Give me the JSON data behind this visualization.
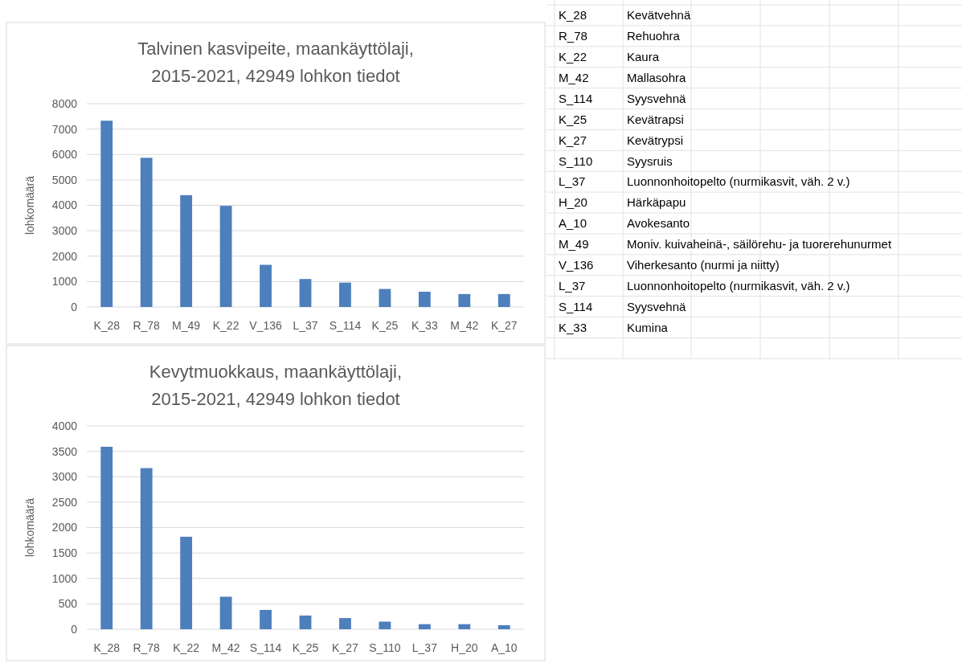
{
  "chart_data": [
    {
      "type": "bar",
      "title": "Talvinen kasvipeite, maankäyttölaji,\n2015-2021, 42949 lohkon tiedot",
      "ylabel": "lohkomäärä",
      "categories": [
        "K_28",
        "R_78",
        "M_49",
        "K_22",
        "V_136",
        "L_37",
        "S_114",
        "K_25",
        "K_33",
        "M_42",
        "K_27"
      ],
      "values": [
        7330,
        5870,
        4400,
        3980,
        1660,
        1100,
        960,
        710,
        600,
        510,
        510
      ],
      "color": "#4e7fbd",
      "ylim": [
        0,
        8000
      ],
      "yticks": [
        0,
        1000,
        2000,
        3000,
        4000,
        5000,
        6000,
        7000,
        8000
      ],
      "grid": "y"
    },
    {
      "type": "bar",
      "title": "Kevytmuokkaus, maankäyttölaji,\n2015-2021, 42949 lohkon tiedot",
      "ylabel": "lohkomäärä",
      "categories": [
        "K_28",
        "R_78",
        "K_22",
        "M_42",
        "S_114",
        "K_25",
        "K_27",
        "S_110",
        "L_37",
        "H_20",
        "A_10"
      ],
      "values": [
        3590,
        3170,
        1820,
        640,
        380,
        270,
        220,
        150,
        100,
        100,
        80
      ],
      "color": "#4e7fbd",
      "ylim": [
        0,
        4000
      ],
      "yticks": [
        0,
        500,
        1000,
        1500,
        2000,
        2500,
        3000,
        3500,
        4000
      ],
      "grid": "y"
    },
    {
      "type": "other",
      "annotations": [
        "K_28",
        "Kevätvehnä",
        "R_78",
        "Rehuohra",
        "K_22",
        "Kaura",
        "M_42",
        "Mallasohra",
        "S_114",
        "Syysvehnä",
        "K_25",
        "Kevätrapsi",
        "K_27",
        "Kevätrypsi",
        "S_110",
        "Syysruis",
        "L_37",
        "Luonnonhoitopelto (nurmikasvit, väh. 2 v.)",
        "H_20",
        "Härkäpapu",
        "A_10",
        "Avokesanto",
        "M_49",
        "Moniv. kuivaheinä-, säilörehu- ja tuorerehunurmet",
        "V_136",
        "Viherkesanto (nurmi ja niitty)",
        "L_37",
        "Luonnonhoitopelto (nurmikasvit, väh. 2 v.)",
        "S_114",
        "Syysvehnä",
        "K_33",
        "Kumina"
      ]
    }
  ]
}
